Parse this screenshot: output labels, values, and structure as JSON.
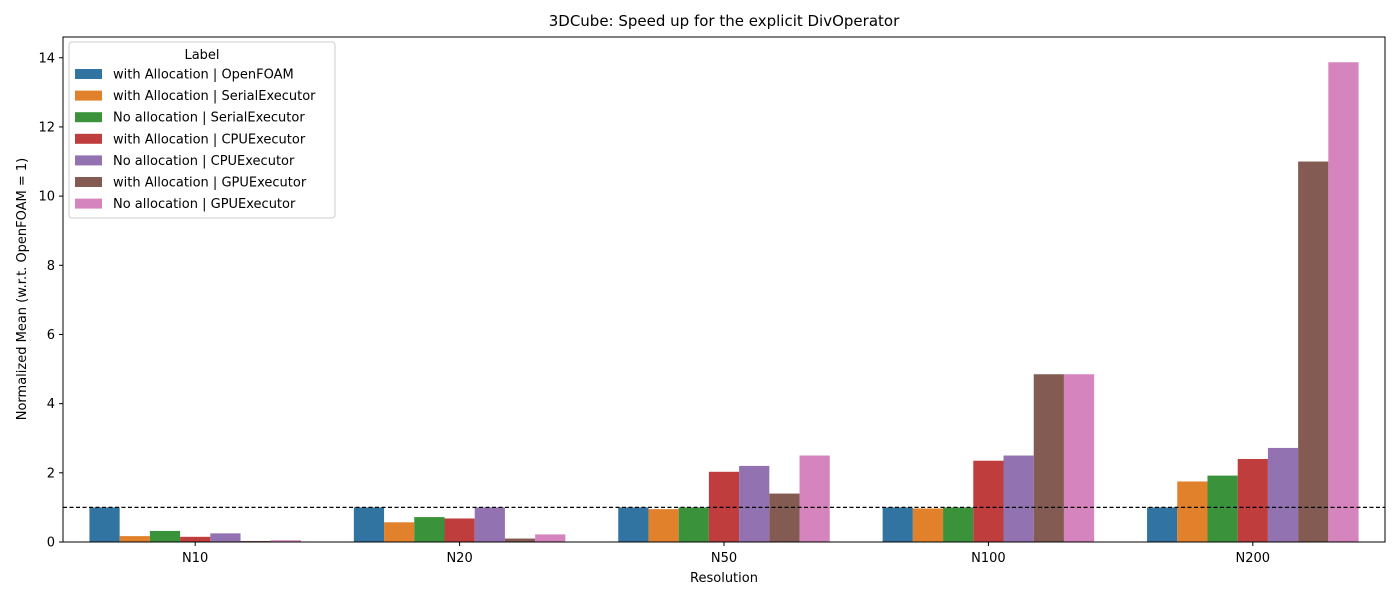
{
  "chart_data": {
    "type": "bar",
    "title": "3DCube: Speed up for the explicit DivOperator",
    "xlabel": "Resolution",
    "ylabel": "Normalized Mean (w.r.t. OpenFOAM = 1)",
    "categories": [
      "N10",
      "N20",
      "N50",
      "N100",
      "N200"
    ],
    "ylim": [
      0,
      14.6
    ],
    "yticks": [
      0,
      2,
      4,
      6,
      8,
      10,
      12,
      14
    ],
    "reference_line": 1,
    "legend": {
      "title": "Label",
      "position": "top-left"
    },
    "grid": false,
    "series": [
      {
        "name": "with Allocation | OpenFOAM",
        "color": "#3274a1",
        "values": [
          1.0,
          1.0,
          1.0,
          1.0,
          1.0
        ]
      },
      {
        "name": "with Allocation | SerialExecutor",
        "color": "#e1812c",
        "values": [
          0.17,
          0.57,
          0.95,
          0.97,
          1.75
        ]
      },
      {
        "name": "No allocation | SerialExecutor",
        "color": "#3a923a",
        "values": [
          0.32,
          0.72,
          1.0,
          1.0,
          1.92
        ]
      },
      {
        "name": "with Allocation | CPUExecutor",
        "color": "#c03d3e",
        "values": [
          0.15,
          0.68,
          2.03,
          2.35,
          2.4
        ]
      },
      {
        "name": "No allocation | CPUExecutor",
        "color": "#9372b2",
        "values": [
          0.25,
          1.0,
          2.2,
          2.5,
          2.72
        ]
      },
      {
        "name": "with Allocation | GPUExecutor",
        "color": "#845b53",
        "values": [
          0.03,
          0.1,
          1.4,
          4.85,
          11.0
        ]
      },
      {
        "name": "No allocation | GPUExecutor",
        "color": "#d684bd",
        "values": [
          0.05,
          0.22,
          2.5,
          4.85,
          13.87
        ]
      }
    ]
  }
}
